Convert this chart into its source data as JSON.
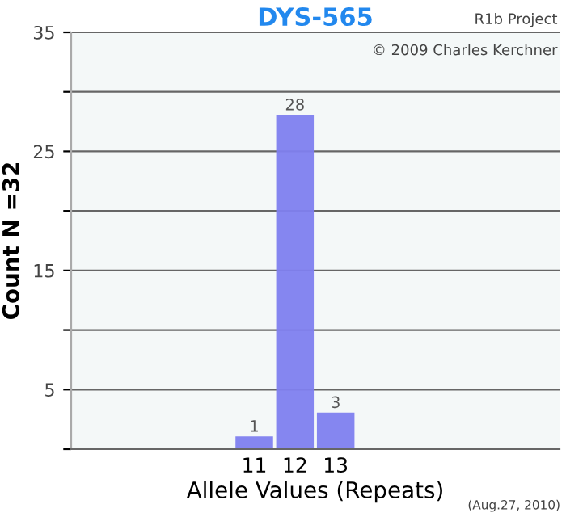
{
  "chart_data": {
    "type": "bar",
    "title": "DYS-565",
    "xlabel": "Allele Values (Repeats)",
    "ylabel": "Count N =32",
    "categories": [
      null,
      null,
      null,
      null,
      "11",
      "12",
      "13",
      null,
      null,
      null,
      null,
      null
    ],
    "values": [
      null,
      null,
      null,
      null,
      1,
      28,
      3,
      null,
      null,
      null,
      null,
      null
    ],
    "color": "#8080f0",
    "ylim": [
      0,
      35
    ],
    "yticks": [
      {
        "value": 0,
        "label": null
      },
      5,
      {
        "value": 10,
        "label": null
      },
      15,
      {
        "value": 20,
        "label": null
      },
      25,
      {
        "value": 30,
        "label": null
      },
      35
    ],
    "grid": "y",
    "data_labels": true,
    "annotations": [
      "R1b Project",
      "© 2009 Charles Kerchner",
      "(Aug.27, 2010)"
    ]
  }
}
